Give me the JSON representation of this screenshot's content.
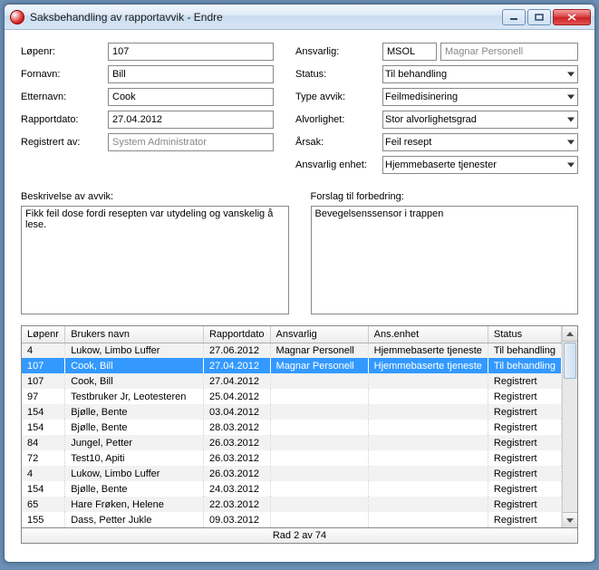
{
  "window": {
    "title": "Saksbehandling av rapportavvik - Endre"
  },
  "form": {
    "left": {
      "lopenr": {
        "label": "Løpenr:",
        "value": "107"
      },
      "fornavn": {
        "label": "Fornavn:",
        "value": "Bill"
      },
      "etternavn": {
        "label": "Etternavn:",
        "value": "Cook"
      },
      "rapportdato": {
        "label": "Rapportdato:",
        "value": "27.04.2012"
      },
      "registrert_av": {
        "label": "Registrert av:",
        "value": "System Administrator"
      }
    },
    "right": {
      "ansvarlig": {
        "label": "Ansvarlig:",
        "code": "MSOL",
        "name": "Magnar Personell"
      },
      "status": {
        "label": "Status:",
        "value": "Til behandling"
      },
      "type_avvik": {
        "label": "Type avvik:",
        "value": "Feilmedisinering"
      },
      "alvorlighet": {
        "label": "Alvorlighet:",
        "value": "Stor alvorlighetsgrad"
      },
      "arsak": {
        "label": "Årsak:",
        "value": "Feil resept"
      },
      "ansvarlig_enhet": {
        "label": "Ansvarlig enhet:",
        "value": "Hjemmebaserte tjenester"
      }
    }
  },
  "desc": {
    "left": {
      "label": "Beskrivelse av avvik:",
      "text": "Fikk feil dose fordi resepten var utydeling og vanskelig å lese."
    },
    "right": {
      "label": "Forslag til forbedring:",
      "text": "Bevegelsenssensor i trappen"
    }
  },
  "table": {
    "headers": [
      "Løpenr",
      "Brukers navn",
      "Rapportdato",
      "Ansvarlig",
      "Ans.enhet",
      "Status"
    ],
    "rows": [
      {
        "lopenr": "4",
        "navn": "Lukow, Limbo Luffer",
        "dato": "27.06.2012",
        "ansvarlig": "Magnar Personell",
        "enhet": "Hjemmebaserte tjeneste",
        "status": "Til behandling",
        "selected": false
      },
      {
        "lopenr": "107",
        "navn": "Cook, Bill",
        "dato": "27.04.2012",
        "ansvarlig": "Magnar Personell",
        "enhet": "Hjemmebaserte tjeneste",
        "status": "Til behandling",
        "selected": true
      },
      {
        "lopenr": "107",
        "navn": "Cook, Bill",
        "dato": "27.04.2012",
        "ansvarlig": "",
        "enhet": "",
        "status": "Registrert",
        "selected": false
      },
      {
        "lopenr": "97",
        "navn": "Testbruker Jr, Leotesteren",
        "dato": "25.04.2012",
        "ansvarlig": "",
        "enhet": "",
        "status": "Registrert",
        "selected": false
      },
      {
        "lopenr": "154",
        "navn": "Bjølle, Bente",
        "dato": "03.04.2012",
        "ansvarlig": "",
        "enhet": "",
        "status": "Registrert",
        "selected": false
      },
      {
        "lopenr": "154",
        "navn": "Bjølle, Bente",
        "dato": "28.03.2012",
        "ansvarlig": "",
        "enhet": "",
        "status": "Registrert",
        "selected": false
      },
      {
        "lopenr": "84",
        "navn": "Jungel, Petter",
        "dato": "26.03.2012",
        "ansvarlig": "",
        "enhet": "",
        "status": "Registrert",
        "selected": false
      },
      {
        "lopenr": "72",
        "navn": "Test10, Apiti",
        "dato": "26.03.2012",
        "ansvarlig": "",
        "enhet": "",
        "status": "Registrert",
        "selected": false
      },
      {
        "lopenr": "4",
        "navn": "Lukow, Limbo Luffer",
        "dato": "26.03.2012",
        "ansvarlig": "",
        "enhet": "",
        "status": "Registrert",
        "selected": false
      },
      {
        "lopenr": "154",
        "navn": "Bjølle, Bente",
        "dato": "24.03.2012",
        "ansvarlig": "",
        "enhet": "",
        "status": "Registrert",
        "selected": false
      },
      {
        "lopenr": "65",
        "navn": "Hare Frøken, Helene",
        "dato": "22.03.2012",
        "ansvarlig": "",
        "enhet": "",
        "status": "Registrert",
        "selected": false
      },
      {
        "lopenr": "155",
        "navn": "Dass, Petter Jukle",
        "dato": "09.03.2012",
        "ansvarlig": "",
        "enhet": "",
        "status": "Registrert",
        "selected": false
      }
    ]
  },
  "statusbar": {
    "text": "Rad 2 av 74"
  },
  "colors": {
    "selection": "#3399ff",
    "border": "#888888",
    "stripe": "#f2f2f2"
  }
}
